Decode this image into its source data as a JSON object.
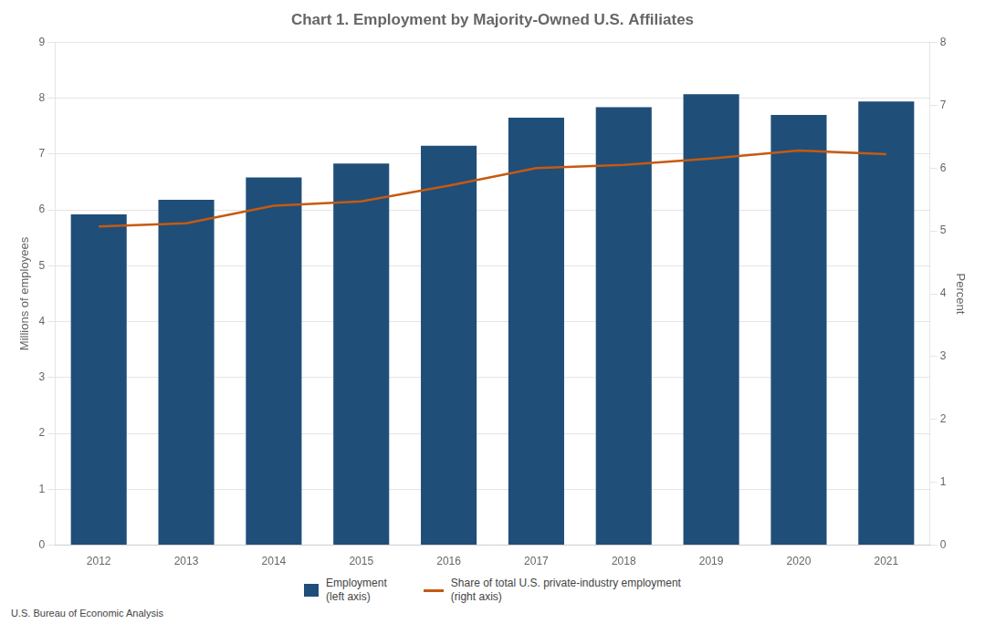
{
  "chart_data": {
    "type": "bar",
    "title": "Chart 1. Employment by Majority-Owned U.S. Affiliates",
    "categories": [
      "2012",
      "2013",
      "2014",
      "2015",
      "2016",
      "2017",
      "2018",
      "2019",
      "2020",
      "2021"
    ],
    "series": [
      {
        "name": "Employment\n(left axis)",
        "type": "bar",
        "color": "#1f4e79",
        "values": [
          5.92,
          6.18,
          6.58,
          6.83,
          7.15,
          7.65,
          7.84,
          8.07,
          7.7,
          7.94
        ]
      },
      {
        "name": "Share of total U.S. private-industry employment\n(right axis)",
        "type": "line",
        "color": "#c55a11",
        "axis": "y2",
        "marker": "none",
        "values": [
          5.07,
          5.12,
          5.4,
          5.47,
          5.72,
          6.0,
          6.05,
          6.15,
          6.28,
          6.22
        ]
      }
    ],
    "ylabel": "Millions of employees",
    "y2label": "Percent",
    "ylim": [
      0,
      9
    ],
    "yticks": [
      0,
      1,
      2,
      3,
      4,
      5,
      6,
      7,
      8,
      9
    ],
    "y2lim": [
      0,
      8
    ],
    "y2ticks": [
      0,
      1,
      2,
      3,
      4,
      5,
      6,
      7,
      8
    ],
    "grid": true,
    "legend": "bottom",
    "annotations": [
      "U.S. Bureau of Economic Analysis"
    ]
  }
}
